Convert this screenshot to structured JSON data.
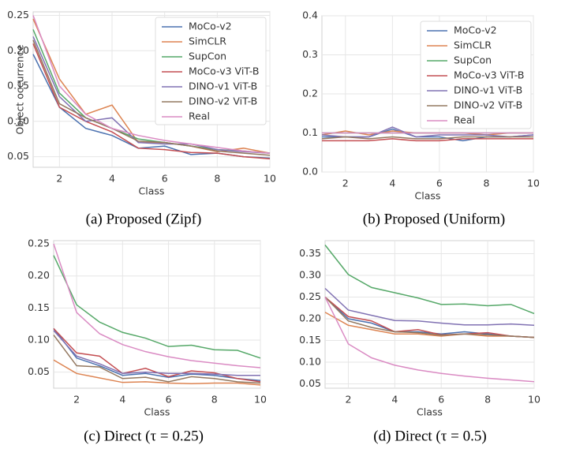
{
  "chart_data": [
    {
      "type": "line",
      "caption": "(a) Proposed (Zipf)",
      "y_label": "Object occurrence",
      "x_label": "Class",
      "x": [
        1,
        2,
        3,
        4,
        5,
        6,
        7,
        8,
        9,
        10
      ],
      "xlim": [
        1,
        10
      ],
      "xticks": [
        2,
        4,
        6,
        8,
        10
      ],
      "ylim": [
        0.035,
        0.255
      ],
      "yticks": [
        0.05,
        {
          "value": 0.1,
          "label": "0.10"
        },
        0.15,
        {
          "value": 0.2,
          "label": "0.20"
        },
        0.25
      ],
      "grid": true,
      "legend": "upper right",
      "series": [
        {
          "name": "MoCo-v2",
          "color": "#4c72b0",
          "values": [
            0.195,
            0.12,
            0.09,
            0.08,
            0.062,
            0.065,
            0.053,
            0.055,
            0.05,
            0.048
          ]
        },
        {
          "name": "SimCLR",
          "color": "#dd8452",
          "values": [
            0.245,
            0.16,
            0.11,
            0.123,
            0.07,
            0.07,
            0.065,
            0.057,
            0.062,
            0.055
          ]
        },
        {
          "name": "SupCon",
          "color": "#55a868",
          "values": [
            0.23,
            0.14,
            0.105,
            0.09,
            0.075,
            0.07,
            0.065,
            0.06,
            0.058,
            0.055
          ]
        },
        {
          "name": "MoCo-v3 ViT-B",
          "color": "#c44e52",
          "values": [
            0.21,
            0.12,
            0.1,
            0.085,
            0.062,
            0.06,
            0.056,
            0.055,
            0.05,
            0.047
          ]
        },
        {
          "name": "DINO-v1 ViT-B",
          "color": "#8172b3",
          "values": [
            0.22,
            0.135,
            0.1,
            0.105,
            0.07,
            0.068,
            0.068,
            0.06,
            0.057,
            0.055
          ]
        },
        {
          "name": "DINO-v2 ViT-B",
          "color": "#937860",
          "values": [
            0.215,
            0.125,
            0.105,
            0.09,
            0.072,
            0.07,
            0.065,
            0.058,
            0.055,
            0.052
          ]
        },
        {
          "name": "Real",
          "color": "#da8bc3",
          "values": [
            0.25,
            0.15,
            0.11,
            0.09,
            0.08,
            0.073,
            0.068,
            0.063,
            0.058,
            0.055
          ]
        }
      ]
    },
    {
      "type": "line",
      "caption": "(b) Proposed (Uniform)",
      "x_label": "Class",
      "x": [
        1,
        2,
        3,
        4,
        5,
        6,
        7,
        8,
        9,
        10
      ],
      "xlim": [
        1,
        10
      ],
      "xticks": [
        2,
        4,
        6,
        8,
        10
      ],
      "ylim": [
        0,
        0.4
      ],
      "yticks": [
        {
          "value": 0,
          "label": "0.0"
        },
        0.1,
        0.2,
        0.3,
        0.4
      ],
      "grid": true,
      "legend": "upper right",
      "series": [
        {
          "name": "MoCo-v2",
          "color": "#4c72b0",
          "values": [
            0.09,
            0.09,
            0.09,
            0.11,
            0.09,
            0.09,
            0.08,
            0.09,
            0.09,
            0.095
          ]
        },
        {
          "name": "SimCLR",
          "color": "#dd8452",
          "values": [
            0.095,
            0.105,
            0.095,
            0.105,
            0.1,
            0.1,
            0.1,
            0.095,
            0.1,
            0.1
          ]
        },
        {
          "name": "SupCon",
          "color": "#55a868",
          "values": [
            0.1,
            0.1,
            0.1,
            0.1,
            0.1,
            0.1,
            0.1,
            0.1,
            0.1,
            0.1
          ]
        },
        {
          "name": "MoCo-v3 ViT-B",
          "color": "#c44e52",
          "values": [
            0.08,
            0.08,
            0.08,
            0.085,
            0.08,
            0.08,
            0.085,
            0.085,
            0.085,
            0.085
          ]
        },
        {
          "name": "DINO-v1 ViT-B",
          "color": "#8172b3",
          "values": [
            0.095,
            0.09,
            0.09,
            0.115,
            0.09,
            0.095,
            0.095,
            0.095,
            0.09,
            0.095
          ]
        },
        {
          "name": "DINO-v2 ViT-B",
          "color": "#937860",
          "values": [
            0.085,
            0.09,
            0.085,
            0.09,
            0.085,
            0.085,
            0.09,
            0.09,
            0.09,
            0.09
          ]
        },
        {
          "name": "Real",
          "color": "#da8bc3",
          "values": [
            0.1,
            0.1,
            0.1,
            0.1,
            0.1,
            0.1,
            0.1,
            0.1,
            0.1,
            0.1
          ]
        }
      ]
    },
    {
      "type": "line",
      "caption": "(c) Direct (τ = 0.25)",
      "x_label": "Class",
      "x": [
        1,
        2,
        3,
        4,
        5,
        6,
        7,
        8,
        9,
        10
      ],
      "xlim": [
        1,
        10
      ],
      "xticks": [
        2,
        4,
        6,
        8,
        10
      ],
      "ylim": [
        0.025,
        0.255
      ],
      "yticks": [
        0.05,
        {
          "value": 0.1,
          "label": "0.10"
        },
        0.15,
        {
          "value": 0.2,
          "label": "0.20"
        },
        0.25
      ],
      "grid": true,
      "series": [
        {
          "color": "#4c72b0",
          "values": [
            0.118,
            0.072,
            0.06,
            0.045,
            0.048,
            0.042,
            0.047,
            0.045,
            0.04,
            0.037
          ]
        },
        {
          "color": "#dd8452",
          "values": [
            0.069,
            0.048,
            0.041,
            0.034,
            0.035,
            0.033,
            0.032,
            0.033,
            0.033,
            0.03
          ]
        },
        {
          "color": "#55a868",
          "values": [
            0.232,
            0.155,
            0.128,
            0.112,
            0.103,
            0.09,
            0.092,
            0.085,
            0.084,
            0.072
          ]
        },
        {
          "color": "#c44e52",
          "values": [
            0.118,
            0.08,
            0.075,
            0.048,
            0.056,
            0.043,
            0.052,
            0.049,
            0.04,
            0.035
          ]
        },
        {
          "color": "#8172b3",
          "values": [
            0.115,
            0.075,
            0.063,
            0.048,
            0.05,
            0.048,
            0.048,
            0.047,
            0.045,
            0.045
          ]
        },
        {
          "color": "#937860",
          "values": [
            0.108,
            0.06,
            0.058,
            0.04,
            0.042,
            0.035,
            0.043,
            0.04,
            0.035,
            0.033
          ]
        },
        {
          "color": "#da8bc3",
          "values": [
            0.25,
            0.143,
            0.11,
            0.093,
            0.082,
            0.074,
            0.068,
            0.064,
            0.06,
            0.057
          ]
        }
      ]
    },
    {
      "type": "line",
      "caption": "(d) Direct (τ = 0.5)",
      "x_label": "Class",
      "x": [
        1,
        2,
        3,
        4,
        5,
        6,
        7,
        8,
        9,
        10
      ],
      "xlim": [
        1,
        10
      ],
      "xticks": [
        2,
        4,
        6,
        8,
        10
      ],
      "ylim": [
        0.04,
        0.38
      ],
      "yticks": [
        0.05,
        {
          "value": 0.1,
          "label": "0.10"
        },
        0.15,
        {
          "value": 0.2,
          "label": "0.20"
        },
        0.25,
        {
          "value": 0.3,
          "label": "0.30"
        },
        0.35
      ],
      "grid": true,
      "series": [
        {
          "color": "#4c72b0",
          "values": [
            0.25,
            0.2,
            0.19,
            0.17,
            0.17,
            0.165,
            0.17,
            0.165,
            0.16,
            0.157
          ]
        },
        {
          "color": "#dd8452",
          "values": [
            0.215,
            0.185,
            0.175,
            0.165,
            0.165,
            0.16,
            0.165,
            0.16,
            0.16,
            0.157
          ]
        },
        {
          "color": "#55a868",
          "values": [
            0.37,
            0.302,
            0.272,
            0.26,
            0.248,
            0.233,
            0.234,
            0.23,
            0.233,
            0.212
          ]
        },
        {
          "color": "#c44e52",
          "values": [
            0.25,
            0.205,
            0.195,
            0.17,
            0.175,
            0.163,
            0.165,
            0.168,
            0.16,
            0.157
          ]
        },
        {
          "color": "#8172b3",
          "values": [
            0.27,
            0.22,
            0.208,
            0.196,
            0.195,
            0.19,
            0.186,
            0.186,
            0.188,
            0.185
          ]
        },
        {
          "color": "#937860",
          "values": [
            0.25,
            0.195,
            0.18,
            0.17,
            0.168,
            0.162,
            0.165,
            0.163,
            0.16,
            0.157
          ]
        },
        {
          "color": "#da8bc3",
          "values": [
            0.25,
            0.142,
            0.11,
            0.093,
            0.082,
            0.074,
            0.068,
            0.063,
            0.059,
            0.055
          ]
        }
      ]
    }
  ]
}
